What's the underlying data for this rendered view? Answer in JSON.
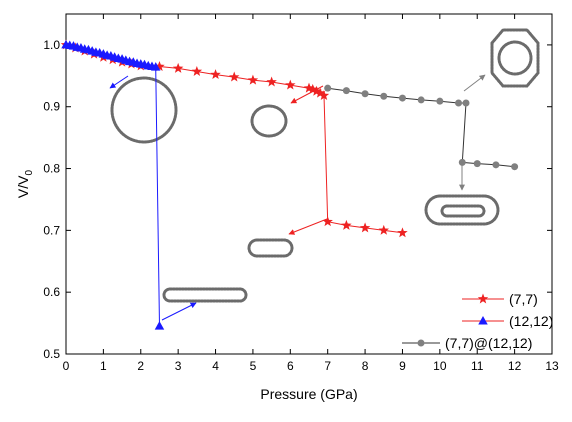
{
  "chart_data": {
    "type": "scatter",
    "xlabel": "Pressure (GPa)",
    "ylabel_main": "V/V",
    "ylabel_sub": "0",
    "xlim": [
      0,
      13
    ],
    "ylim": [
      0.5,
      1.05
    ],
    "xticks": [
      0,
      1,
      2,
      3,
      4,
      5,
      6,
      7,
      8,
      9,
      10,
      11,
      12,
      13
    ],
    "yticks": [
      0.5,
      0.6,
      0.7,
      0.8,
      0.9,
      1.0
    ],
    "ytick_labels": [
      "0.5",
      "0.6",
      "0.7",
      "0.8",
      "0.9",
      "1.0"
    ],
    "grid": false,
    "legend_position": "bottom-right",
    "series": [
      {
        "name": "(7,7)",
        "color": "#ee2222",
        "marker": "star",
        "points": [
          [
            0,
            1.0
          ],
          [
            0.25,
            0.995
          ],
          [
            0.5,
            0.99
          ],
          [
            0.75,
            0.985
          ],
          [
            1.0,
            0.98
          ],
          [
            1.25,
            0.976
          ],
          [
            1.5,
            0.972
          ],
          [
            1.75,
            0.969
          ],
          [
            2.0,
            0.966
          ],
          [
            2.5,
            0.965
          ],
          [
            3.0,
            0.962
          ],
          [
            3.5,
            0.957
          ],
          [
            4.0,
            0.952
          ],
          [
            4.5,
            0.948
          ],
          [
            5.0,
            0.943
          ],
          [
            5.5,
            0.94
          ],
          [
            6.0,
            0.935
          ],
          [
            6.5,
            0.93
          ],
          [
            6.6,
            0.928
          ],
          [
            6.7,
            0.925
          ],
          [
            6.8,
            0.922
          ],
          [
            6.9,
            0.918
          ],
          [
            7.0,
            0.714
          ],
          [
            7.5,
            0.708
          ],
          [
            8.0,
            0.704
          ],
          [
            8.5,
            0.7
          ],
          [
            9.0,
            0.696
          ]
        ]
      },
      {
        "name": "(12,12)",
        "color": "#1a1aff",
        "marker": "triangle",
        "points": [
          [
            0,
            1.0
          ],
          [
            0.1,
            0.999
          ],
          [
            0.2,
            0.998
          ],
          [
            0.3,
            0.996
          ],
          [
            0.4,
            0.995
          ],
          [
            0.5,
            0.993
          ],
          [
            0.6,
            0.992
          ],
          [
            0.7,
            0.99
          ],
          [
            0.8,
            0.988
          ],
          [
            0.9,
            0.987
          ],
          [
            1.0,
            0.985
          ],
          [
            1.1,
            0.983
          ],
          [
            1.2,
            0.982
          ],
          [
            1.3,
            0.98
          ],
          [
            1.4,
            0.978
          ],
          [
            1.5,
            0.977
          ],
          [
            1.6,
            0.975
          ],
          [
            1.7,
            0.973
          ],
          [
            1.8,
            0.972
          ],
          [
            1.9,
            0.97
          ],
          [
            2.0,
            0.969
          ],
          [
            2.1,
            0.968
          ],
          [
            2.2,
            0.966
          ],
          [
            2.3,
            0.965
          ],
          [
            2.4,
            0.964
          ],
          [
            2.5,
            0.545
          ]
        ]
      },
      {
        "name": "(7,7)@(12,12)",
        "color": "#808080",
        "marker": "circle",
        "points": [
          [
            7.0,
            0.93
          ],
          [
            7.5,
            0.926
          ],
          [
            8.0,
            0.921
          ],
          [
            8.5,
            0.917
          ],
          [
            9.0,
            0.914
          ],
          [
            9.5,
            0.911
          ],
          [
            10.0,
            0.909
          ],
          [
            10.5,
            0.906
          ],
          [
            10.7,
            0.906
          ],
          [
            10.6,
            0.81
          ],
          [
            11.0,
            0.808
          ],
          [
            11.5,
            0.806
          ],
          [
            12.0,
            0.803
          ]
        ]
      }
    ]
  }
}
